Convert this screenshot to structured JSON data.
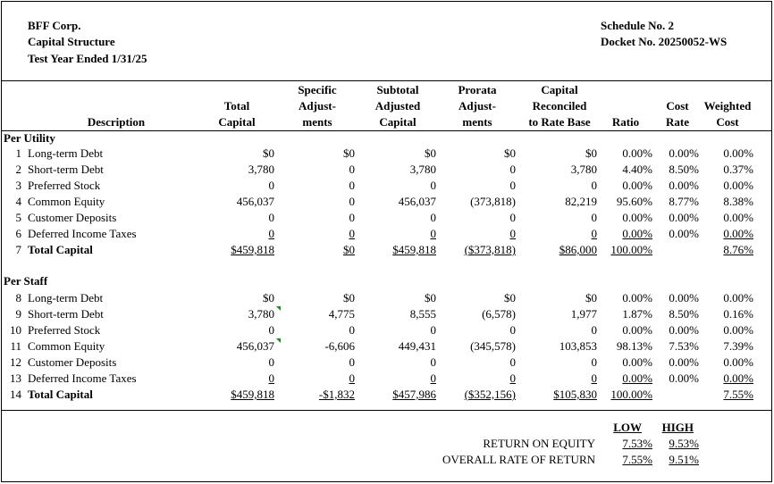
{
  "header": {
    "company": "BFF Corp.",
    "title": "Capital Structure",
    "period": "Test Year Ended 1/31/25",
    "schedule": "Schedule No. 2",
    "docket": "Docket No. 20250052-WS"
  },
  "columns": {
    "description": "Description",
    "total_capital": [
      "Total",
      "Capital"
    ],
    "specific_adjustments": [
      "Specific",
      "Adjust-",
      "ments"
    ],
    "subtotal_adjusted_capital": [
      "Subtotal",
      "Adjusted",
      "Capital"
    ],
    "prorata_adjustments": [
      "Prorata",
      "Adjust-",
      "ments"
    ],
    "capital_reconciled": [
      "Capital",
      "Reconciled",
      "to Rate Base"
    ],
    "ratio": "Ratio",
    "cost_rate": [
      "Cost",
      "Rate"
    ],
    "weighted_cost": [
      "Weighted",
      "Cost"
    ]
  },
  "sections": [
    {
      "label": "Per Utility",
      "rows": [
        {
          "ln": "1",
          "desc": "Long-term Debt",
          "total": "$0",
          "specific": "$0",
          "subtotal": "$0",
          "prorata": "$0",
          "reconciled": "$0",
          "ratio": "0.00%",
          "cost": "0.00%",
          "weighted": "0.00%"
        },
        {
          "ln": "2",
          "desc": "Short-term Debt",
          "total": "3,780",
          "specific": "0",
          "subtotal": "3,780",
          "prorata": "0",
          "reconciled": "3,780",
          "ratio": "4.40%",
          "cost": "8.50%",
          "weighted": "0.37%"
        },
        {
          "ln": "3",
          "desc": "Preferred Stock",
          "total": "0",
          "specific": "0",
          "subtotal": "0",
          "prorata": "0",
          "reconciled": "0",
          "ratio": "0.00%",
          "cost": "0.00%",
          "weighted": "0.00%"
        },
        {
          "ln": "4",
          "desc": "Common Equity",
          "total": "456,037",
          "specific": "0",
          "subtotal": "456,037",
          "prorata": "(373,818)",
          "reconciled": "82,219",
          "ratio": "95.60%",
          "cost": "8.77%",
          "weighted": "8.38%"
        },
        {
          "ln": "5",
          "desc": "Customer Deposits",
          "total": "0",
          "specific": "0",
          "subtotal": "0",
          "prorata": "0",
          "reconciled": "0",
          "ratio": "0.00%",
          "cost": "0.00%",
          "weighted": "0.00%"
        },
        {
          "ln": "6",
          "desc": "Deferred Income Taxes",
          "total": "0",
          "specific": "0",
          "subtotal": "0",
          "prorata": "0",
          "reconciled": "0",
          "ratio": "0.00%",
          "cost": "0.00%",
          "weighted": "0.00%"
        },
        {
          "ln": "7",
          "desc": "Total Capital",
          "total": "$459,818",
          "specific": "$0",
          "subtotal": "$459,818",
          "prorata": "($373,818)",
          "reconciled": "$86,000",
          "ratio": "100.00%",
          "cost": "",
          "weighted": "8.76%"
        }
      ]
    },
    {
      "label": "Per Staff",
      "rows": [
        {
          "ln": "8",
          "desc": "Long-term Debt",
          "total": "$0",
          "specific": "$0",
          "subtotal": "$0",
          "prorata": "$0",
          "reconciled": "$0",
          "ratio": "0.00%",
          "cost": "0.00%",
          "weighted": "0.00%"
        },
        {
          "ln": "9",
          "desc": "Short-term Debt",
          "total": "3,780",
          "specific": "4,775",
          "subtotal": "8,555",
          "prorata": "(6,578)",
          "reconciled": "1,977",
          "ratio": "1.87%",
          "cost": "8.50%",
          "weighted": "0.16%"
        },
        {
          "ln": "10",
          "desc": "Preferred Stock",
          "total": "0",
          "specific": "0",
          "subtotal": "0",
          "prorata": "0",
          "reconciled": "0",
          "ratio": "0.00%",
          "cost": "0.00%",
          "weighted": "0.00%"
        },
        {
          "ln": "11",
          "desc": "Common Equity",
          "total": "456,037",
          "specific": "-6,606",
          "subtotal": "449,431",
          "prorata": "(345,578)",
          "reconciled": "103,853",
          "ratio": "98.13%",
          "cost": "7.53%",
          "weighted": "7.39%"
        },
        {
          "ln": "12",
          "desc": "Customer Deposits",
          "total": "0",
          "specific": "0",
          "subtotal": "0",
          "prorata": "0",
          "reconciled": "0",
          "ratio": "0.00%",
          "cost": "0.00%",
          "weighted": "0.00%"
        },
        {
          "ln": "13",
          "desc": "Deferred Income Taxes",
          "total": "0",
          "specific": "0",
          "subtotal": "0",
          "prorata": "0",
          "reconciled": "0",
          "ratio": "0.00%",
          "cost": "0.00%",
          "weighted": "0.00%"
        },
        {
          "ln": "14",
          "desc": "Total Capital",
          "total": "$459,818",
          "specific": "-$1,832",
          "subtotal": "$457,986",
          "prorata": "($352,156)",
          "reconciled": "$105,830",
          "ratio": "100.00%",
          "cost": "",
          "weighted": "7.55%"
        }
      ]
    }
  ],
  "returns": {
    "low_label": "LOW",
    "high_label": "HIGH",
    "roe_label": "RETURN ON EQUITY",
    "roe_low": "7.53%",
    "roe_high": "9.53%",
    "ror_label": "OVERALL RATE OF RETURN",
    "ror_low": "7.55%",
    "ror_high": "9.51%"
  },
  "colors": {
    "cell_marker": "#1e8c1e",
    "text": "#000000",
    "background": "#ffffff"
  }
}
